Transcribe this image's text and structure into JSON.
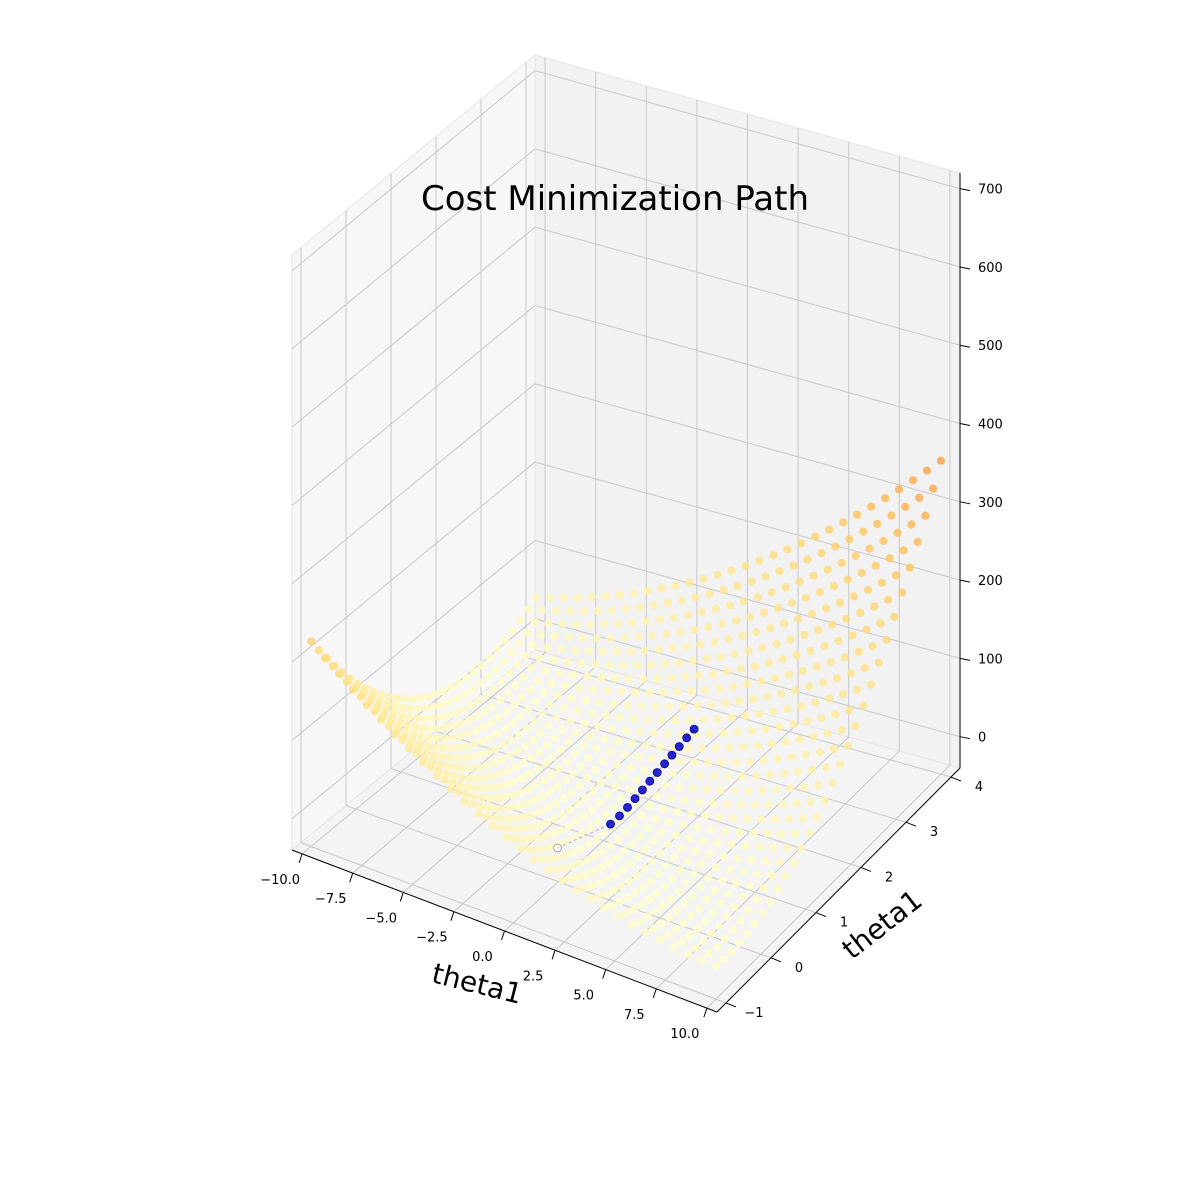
{
  "chart_data": {
    "type": "scatter",
    "projection": "3d",
    "title": "Cost Minimization Path",
    "xlabel": "theta1",
    "ylabel": "theta1",
    "zlabel": "",
    "xlim": [
      -10.5,
      10.5
    ],
    "ylim": [
      -1.2,
      4.2
    ],
    "zlim": [
      -40,
      720
    ],
    "x_ticks": [
      -10.0,
      -7.5,
      -5.0,
      -2.5,
      0.0,
      2.5,
      5.0,
      7.5,
      10.0
    ],
    "x_tick_labels": [
      "−10.0",
      "−7.5",
      "−5.0",
      "−2.5",
      "0.0",
      "2.5",
      "5.0",
      "7.5",
      "10.0"
    ],
    "y_ticks": [
      -1,
      0,
      1,
      2,
      3,
      4
    ],
    "y_tick_labels": [
      "−1",
      "0",
      "1",
      "2",
      "3",
      "4"
    ],
    "z_ticks": [
      0,
      100,
      200,
      300,
      400,
      500,
      600,
      700
    ],
    "z_tick_labels": [
      "0",
      "100",
      "200",
      "300",
      "400",
      "500",
      "600",
      "700"
    ],
    "grid": true,
    "colormap": "YlOrRd",
    "series": [
      {
        "kind": "cost-surface-grid",
        "theta0_range": [
          -10,
          10
        ],
        "theta0_steps": 30,
        "theta1_range": [
          -1,
          4
        ],
        "theta1_steps": 30,
        "cost_min": 0,
        "cost_max": 672
      },
      {
        "kind": "descent-path",
        "color": "#0000cc",
        "points": [
          [
            -0.05,
            0.0,
            2.6
          ],
          [
            0.9,
            0.75,
            2.2
          ],
          [
            0.9,
            0.95,
            2.0
          ],
          [
            0.85,
            1.15,
            1.9
          ],
          [
            0.78,
            1.35,
            1.8
          ],
          [
            0.7,
            1.55,
            1.7
          ],
          [
            0.62,
            1.75,
            1.6
          ],
          [
            0.54,
            1.95,
            1.5
          ],
          [
            0.46,
            2.15,
            1.4
          ],
          [
            0.38,
            2.35,
            1.3
          ],
          [
            0.3,
            2.55,
            1.2
          ],
          [
            0.22,
            2.75,
            1.1
          ],
          [
            0.14,
            2.95,
            1.0
          ]
        ]
      }
    ]
  }
}
